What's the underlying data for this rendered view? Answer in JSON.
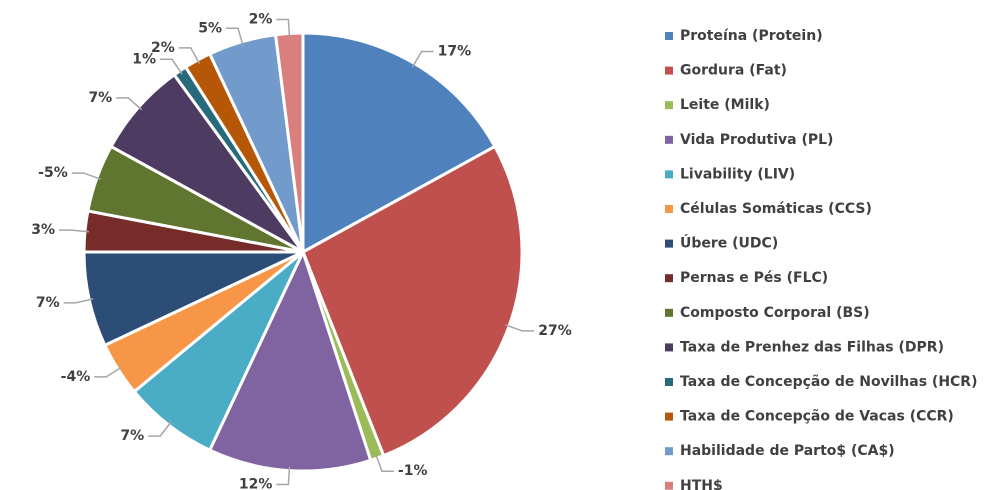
{
  "chart_data": {
    "type": "pie",
    "categories": [
      "Proteína (Protein)",
      "Gordura (Fat)",
      "Leite (Milk)",
      "Vida Produtiva (PL)",
      "Livability (LIV)",
      "Células Somáticas (CCS)",
      "Úbere (UDC)",
      "Pernas e Pés (FLC)",
      "Composto Corporal (BS)",
      "Taxa de Prenhez das Filhas (DPR)",
      "Taxa de Concepção de Novilhas (HCR)",
      "Taxa de Concepção de Vacas (CCR)",
      "Habilidade de Parto$ (CA$)",
      "HTH$"
    ],
    "values": [
      17,
      27,
      -1,
      12,
      7,
      -4,
      7,
      3,
      -5,
      7,
      1,
      2,
      5,
      2
    ],
    "value_labels": [
      "17%",
      "27%",
      "-1%",
      "12%",
      "7%",
      "-4%",
      "7%",
      "3%",
      "-5%",
      "7%",
      "1%",
      "2%",
      "5%",
      "2%"
    ],
    "colors": [
      "#4f81bd",
      "#c0504d",
      "#9bbb59",
      "#8064a2",
      "#4bacc6",
      "#f79646",
      "#2c4d75",
      "#772c2a",
      "#5f7530",
      "#4d3b62",
      "#276a7c",
      "#b65708",
      "#729aca",
      "#d9807e"
    ],
    "legend": "right"
  }
}
